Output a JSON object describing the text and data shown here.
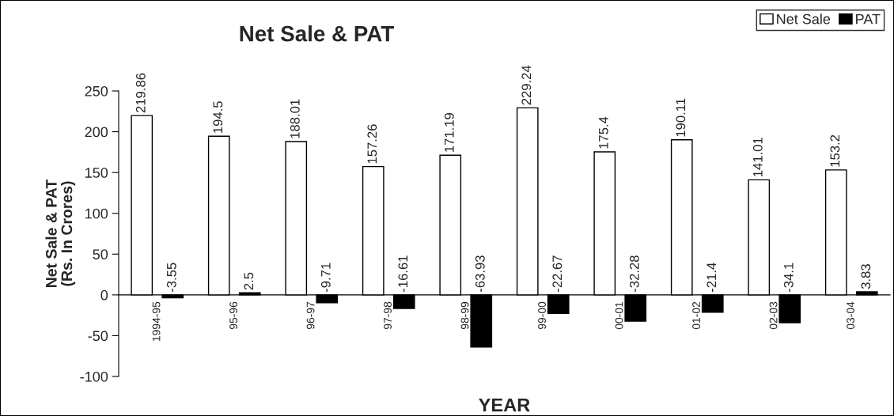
{
  "chart_data": {
    "type": "bar",
    "title": "Net Sale & PAT",
    "xlabel": "YEAR",
    "ylabel": "Net Sale & PAT\n(Rs. In Crores)",
    "categories": [
      "1994-95",
      "95-96",
      "96-97",
      "97-98",
      "98-99",
      "99-00",
      "00-01",
      "01-02",
      "02-03",
      "03-04"
    ],
    "series": [
      {
        "name": "Net Sale",
        "color": "#ffffff",
        "values": [
          219.86,
          194.5,
          188.01,
          157.26,
          171.19,
          229.24,
          175.4,
          190.11,
          141.01,
          153.2
        ]
      },
      {
        "name": "PAT",
        "color": "#000000",
        "values": [
          -3.55,
          2.5,
          -9.71,
          -16.61,
          -63.93,
          -22.67,
          -32.28,
          -21.4,
          -34.1,
          3.83
        ]
      }
    ],
    "ylim": [
      -100,
      250
    ],
    "yticks": [
      -100,
      -50,
      0,
      50,
      100,
      150,
      200,
      250
    ],
    "data_labels": true,
    "grid": false,
    "legend": "top right"
  }
}
